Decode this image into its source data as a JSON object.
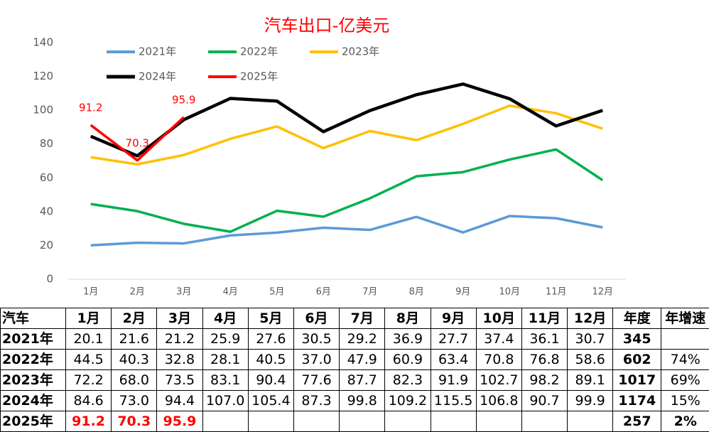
{
  "chart_data": {
    "type": "line",
    "title": "汽车出口-亿美元",
    "categories": [
      "1月",
      "2月",
      "3月",
      "4月",
      "5月",
      "6月",
      "7月",
      "8月",
      "9月",
      "10月",
      "11月",
      "12月"
    ],
    "series": [
      {
        "name": "2021年",
        "color": "#5b9bd5",
        "values": [
          20.1,
          21.6,
          21.2,
          25.9,
          27.6,
          30.5,
          29.2,
          36.9,
          27.7,
          37.4,
          36.1,
          30.7
        ]
      },
      {
        "name": "2022年",
        "color": "#00b050",
        "values": [
          44.5,
          40.3,
          32.8,
          28.1,
          40.5,
          37.0,
          47.9,
          60.9,
          63.4,
          70.8,
          76.8,
          58.6
        ]
      },
      {
        "name": "2023年",
        "color": "#ffc000",
        "values": [
          72.2,
          68.0,
          73.5,
          83.1,
          90.4,
          77.6,
          87.7,
          82.3,
          91.9,
          102.7,
          98.2,
          89.1
        ]
      },
      {
        "name": "2024年",
        "color": "#000000",
        "values": [
          84.6,
          73.0,
          94.4,
          107.0,
          105.4,
          87.3,
          99.8,
          109.2,
          115.5,
          106.8,
          90.7,
          99.9
        ]
      },
      {
        "name": "2025年",
        "color": "#ff0000",
        "values": [
          91.2,
          70.3,
          95.9,
          null,
          null,
          null,
          null,
          null,
          null,
          null,
          null,
          null
        ],
        "data_labels": true
      }
    ],
    "ylim": [
      0,
      140
    ],
    "yticks": [
      0,
      20,
      40,
      60,
      80,
      100,
      120,
      140
    ],
    "grid": false,
    "legend": "top-left"
  },
  "table": {
    "header": [
      "汽车",
      "1月",
      "2月",
      "3月",
      "4月",
      "5月",
      "6月",
      "7月",
      "8月",
      "9月",
      "10月",
      "11月",
      "12月",
      "年度",
      "年增速"
    ],
    "rows": [
      [
        "2021年",
        "20.1",
        "21.6",
        "21.2",
        "25.9",
        "27.6",
        "30.5",
        "29.2",
        "36.9",
        "27.7",
        "37.4",
        "36.1",
        "30.7",
        "345",
        null
      ],
      [
        "2022年",
        "44.5",
        "40.3",
        "32.8",
        "28.1",
        "40.5",
        "37.0",
        "47.9",
        "60.9",
        "63.4",
        "70.8",
        "76.8",
        "58.6",
        "602",
        "74%"
      ],
      [
        "2023年",
        "72.2",
        "68.0",
        "73.5",
        "83.1",
        "90.4",
        "77.6",
        "87.7",
        "82.3",
        "91.9",
        "102.7",
        "98.2",
        "89.1",
        "1017",
        "69%"
      ],
      [
        "2024年",
        "84.6",
        "73.0",
        "94.4",
        "107.0",
        "105.4",
        "87.3",
        "99.8",
        "109.2",
        "115.5",
        "106.8",
        "90.7",
        "99.9",
        "1174",
        "15%"
      ],
      [
        "2025年",
        "91.2",
        "70.3",
        "95.9",
        null,
        null,
        null,
        null,
        null,
        null,
        null,
        null,
        null,
        "257",
        "2%"
      ]
    ]
  }
}
